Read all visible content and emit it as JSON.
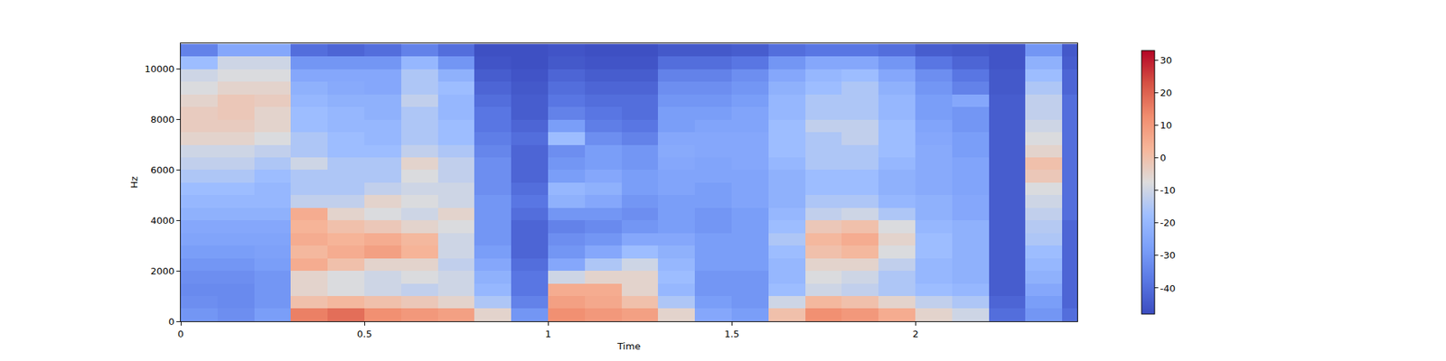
{
  "chart_data": {
    "type": "heatmap",
    "xlabel": "Time",
    "ylabel": "Hz",
    "x": [
      0.05,
      0.15,
      0.25,
      0.35,
      0.45,
      0.55,
      0.65,
      0.75,
      0.85,
      0.95,
      1.05,
      1.15,
      1.25,
      1.35,
      1.45,
      1.55,
      1.65,
      1.75,
      1.85,
      1.95,
      2.05,
      2.15,
      2.25,
      2.35,
      2.45
    ],
    "y": [
      250,
      750,
      1250,
      1750,
      2250,
      2750,
      3250,
      3750,
      4250,
      4750,
      5250,
      5750,
      6250,
      6750,
      7250,
      7750,
      8250,
      8750,
      9250,
      9750,
      10250,
      10750
    ],
    "z": [
      [
        -30,
        -32,
        -28,
        15,
        18,
        12,
        10,
        8,
        -5,
        -30,
        12,
        10,
        8,
        -5,
        -25,
        -28,
        0,
        12,
        10,
        5,
        -5,
        -10,
        -40,
        -30,
        -40
      ],
      [
        -32,
        -33,
        -30,
        0,
        2,
        0,
        -2,
        -5,
        -15,
        -35,
        8,
        6,
        0,
        -15,
        -28,
        -30,
        -10,
        2,
        0,
        -5,
        -12,
        -15,
        -42,
        -28,
        -42
      ],
      [
        -33,
        -33,
        -30,
        -5,
        -8,
        -10,
        -12,
        -10,
        -20,
        -38,
        5,
        5,
        -5,
        -20,
        -30,
        -30,
        -18,
        -10,
        -12,
        -15,
        -18,
        -20,
        -44,
        -25,
        -42
      ],
      [
        -32,
        -32,
        -30,
        -5,
        -8,
        -10,
        -8,
        -10,
        -22,
        -38,
        -10,
        -5,
        -5,
        -18,
        -30,
        -30,
        -20,
        -8,
        -10,
        -15,
        -20,
        -22,
        -44,
        -22,
        -42
      ],
      [
        -30,
        -30,
        -28,
        5,
        0,
        -5,
        -5,
        -12,
        -25,
        -40,
        -25,
        -15,
        -10,
        -20,
        -28,
        -28,
        -20,
        -5,
        -5,
        -12,
        -20,
        -22,
        -44,
        -20,
        -42
      ],
      [
        -28,
        -28,
        -27,
        2,
        5,
        8,
        3,
        -10,
        -28,
        -42,
        -30,
        -25,
        -18,
        -22,
        -28,
        -28,
        -18,
        0,
        2,
        -8,
        -18,
        -22,
        -44,
        -18,
        -42
      ],
      [
        -26,
        -26,
        -26,
        5,
        3,
        5,
        2,
        -10,
        -30,
        -42,
        -32,
        -30,
        -25,
        -25,
        -28,
        -28,
        -15,
        2,
        5,
        -5,
        -18,
        -22,
        -44,
        -15,
        -42
      ],
      [
        -25,
        -25,
        -25,
        3,
        0,
        -2,
        -5,
        -8,
        -30,
        -42,
        -35,
        -33,
        -30,
        -28,
        -30,
        -28,
        -18,
        -2,
        0,
        -8,
        -20,
        -22,
        -44,
        -14,
        -42
      ],
      [
        -22,
        -22,
        -22,
        5,
        -5,
        -8,
        -10,
        -5,
        -30,
        -40,
        -30,
        -30,
        -32,
        -28,
        -30,
        -28,
        -20,
        -12,
        -10,
        -15,
        -22,
        -25,
        -44,
        -12,
        -40
      ],
      [
        -20,
        -20,
        -20,
        -12,
        -12,
        -5,
        -8,
        -10,
        -30,
        -38,
        -22,
        -25,
        -30,
        -28,
        -28,
        -26,
        -22,
        -15,
        -15,
        -20,
        -22,
        -25,
        -44,
        -10,
        -40
      ],
      [
        -18,
        -18,
        -20,
        -15,
        -15,
        -12,
        -10,
        -10,
        -32,
        -40,
        -20,
        -22,
        -28,
        -26,
        -28,
        -26,
        -22,
        -18,
        -18,
        -22,
        -24,
        -26,
        -44,
        -8,
        -40
      ],
      [
        -15,
        -15,
        -18,
        -15,
        -15,
        -15,
        -8,
        -12,
        -32,
        -42,
        -28,
        -25,
        -28,
        -26,
        -26,
        -26,
        -22,
        -18,
        -18,
        -22,
        -24,
        -26,
        -44,
        -2,
        -40
      ],
      [
        -12,
        -12,
        -15,
        -10,
        -15,
        -15,
        -5,
        -12,
        -32,
        -42,
        -30,
        -28,
        -30,
        -25,
        -26,
        -25,
        -20,
        -15,
        -15,
        -20,
        -24,
        -26,
        -44,
        0,
        -40
      ],
      [
        -10,
        -10,
        -12,
        -15,
        -18,
        -18,
        -12,
        -15,
        -34,
        -42,
        -32,
        -28,
        -30,
        -24,
        -25,
        -25,
        -18,
        -15,
        -15,
        -18,
        -24,
        -28,
        -44,
        -5,
        -40
      ],
      [
        -5,
        -5,
        -8,
        -15,
        -18,
        -20,
        -15,
        -18,
        -36,
        -40,
        -18,
        -32,
        -35,
        -25,
        -25,
        -25,
        -18,
        -15,
        -12,
        -18,
        -25,
        -28,
        -44,
        -8,
        -40
      ],
      [
        -3,
        -3,
        -5,
        -18,
        -20,
        -20,
        -15,
        -18,
        -38,
        -42,
        -28,
        -36,
        -38,
        -28,
        -26,
        -26,
        -18,
        -12,
        -12,
        -18,
        -26,
        -30,
        -44,
        -10,
        -40
      ],
      [
        -3,
        -2,
        -5,
        -18,
        -20,
        -22,
        -15,
        -20,
        -38,
        -44,
        -35,
        -38,
        -40,
        -28,
        -28,
        -26,
        -20,
        -15,
        -15,
        -20,
        -28,
        -30,
        -44,
        -12,
        -40
      ],
      [
        -5,
        -2,
        -3,
        -20,
        -22,
        -22,
        -12,
        -20,
        -40,
        -44,
        -38,
        -40,
        -40,
        -30,
        -30,
        -28,
        -20,
        -15,
        -15,
        -20,
        -28,
        -25,
        -44,
        -12,
        -40
      ],
      [
        -8,
        -5,
        -5,
        -22,
        -24,
        -25,
        -15,
        -18,
        -42,
        -45,
        -40,
        -42,
        -42,
        -32,
        -32,
        -30,
        -22,
        -18,
        -15,
        -22,
        -30,
        -35,
        -45,
        -15,
        -42
      ],
      [
        -10,
        -8,
        -8,
        -25,
        -25,
        -25,
        -15,
        -22,
        -44,
        -46,
        -42,
        -44,
        -44,
        -35,
        -35,
        -32,
        -25,
        -20,
        -18,
        -25,
        -32,
        -38,
        -45,
        -18,
        -42
      ],
      [
        -18,
        -10,
        -10,
        -30,
        -30,
        -30,
        -20,
        -30,
        -46,
        -47,
        -45,
        -46,
        -46,
        -40,
        -40,
        -38,
        -30,
        -25,
        -25,
        -30,
        -38,
        -42,
        -46,
        -22,
        -44
      ],
      [
        -35,
        -25,
        -25,
        -40,
        -42,
        -40,
        -35,
        -40,
        -47,
        -47,
        -46,
        -47,
        -47,
        -45,
        -45,
        -44,
        -40,
        -38,
        -38,
        -40,
        -44,
        -45,
        -46,
        -30,
        -45
      ]
    ],
    "xlim": [
      0,
      2.44
    ],
    "ylim": [
      0,
      11025
    ],
    "xticks": [
      0,
      0.5,
      1,
      1.5,
      2
    ],
    "yticks": [
      0,
      2000,
      4000,
      6000,
      8000,
      10000
    ],
    "colorbar": {
      "range": [
        -48,
        33
      ],
      "ticks": [
        -40,
        -30,
        -20,
        -10,
        0,
        10,
        20,
        30
      ]
    }
  }
}
